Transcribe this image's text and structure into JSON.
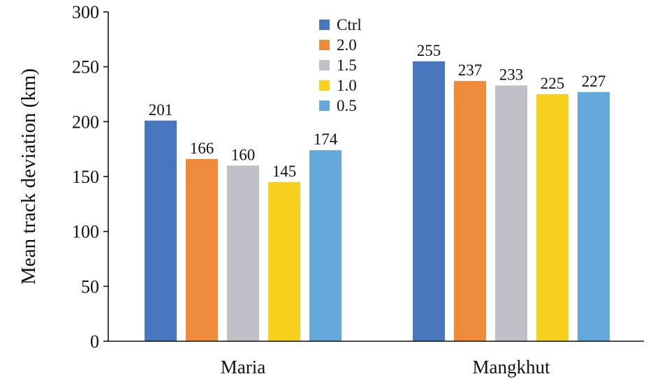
{
  "chart_data": {
    "type": "bar",
    "title": "",
    "xlabel": "",
    "ylabel": "Mean track deviation (km)",
    "ylim": [
      0,
      300
    ],
    "yticks": [
      0,
      50,
      100,
      150,
      200,
      250,
      300
    ],
    "categories": [
      "Maria",
      "Mangkhut"
    ],
    "series": [
      {
        "name": "Ctrl",
        "color": "#4877BD",
        "values": [
          201,
          255
        ]
      },
      {
        "name": "2.0",
        "color": "#EE8A3A",
        "values": [
          166,
          237
        ]
      },
      {
        "name": "1.5",
        "color": "#BEC1C7",
        "values": [
          160,
          233
        ]
      },
      {
        "name": "1.0",
        "color": "#F8D01E",
        "values": [
          145,
          225
        ]
      },
      {
        "name": "0.5",
        "color": "#64A8DC",
        "values": [
          174,
          227
        ]
      }
    ],
    "legend_position": "top-center",
    "grid": false
  }
}
